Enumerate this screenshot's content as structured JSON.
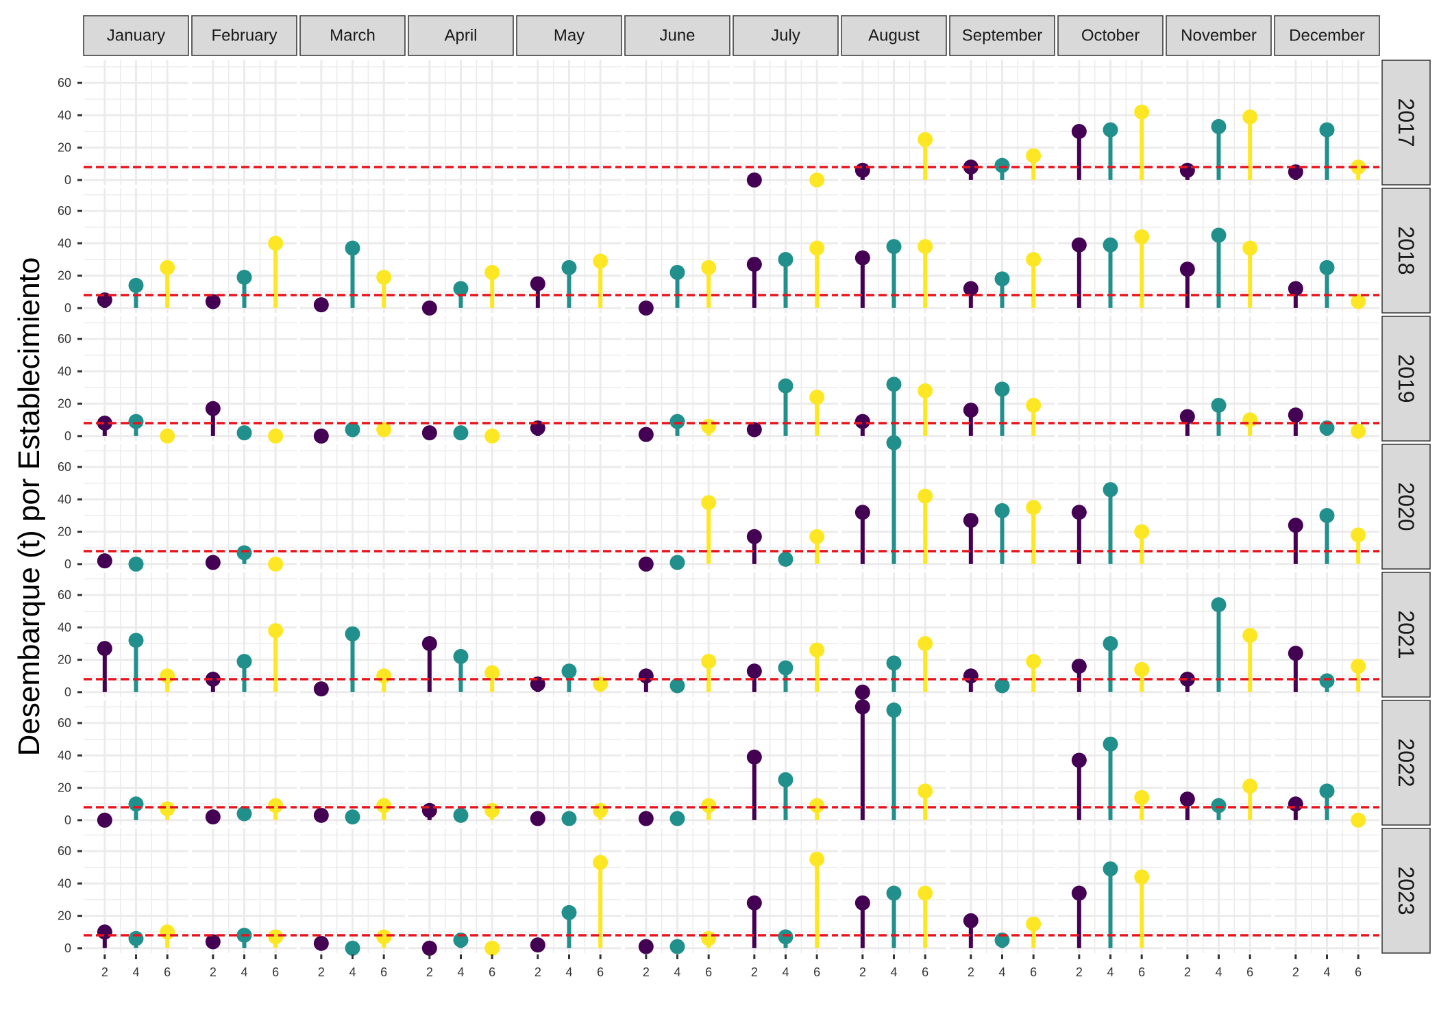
{
  "chart_data": {
    "type": "lollipop",
    "ylabel": "Desembarque (t) por Establecimiento",
    "xlabel": "",
    "months": [
      "January",
      "February",
      "March",
      "April",
      "May",
      "June",
      "July",
      "August",
      "September",
      "October",
      "November",
      "December"
    ],
    "years": [
      "2017",
      "2018",
      "2019",
      "2020",
      "2021",
      "2022",
      "2023"
    ],
    "x": [
      2,
      4,
      6
    ],
    "x_ticks": [
      "2",
      "4",
      "6"
    ],
    "ylim": [
      -3,
      74
    ],
    "y_ticks": [
      0,
      20,
      40,
      60
    ],
    "y_tick_labels": [
      "0",
      "20",
      "40",
      "60"
    ],
    "reference_line": {
      "y": 8,
      "style": "dashed",
      "color": "#e8141c"
    },
    "series_colors": [
      "#440154",
      "#21908c",
      "#fde725"
    ],
    "colors": {
      "panel_bg": "#ffffff",
      "grid": "#ebebeb",
      "strip_bg": "#d9d9d9",
      "strip_border": "#333333"
    },
    "values": {
      "2017": [
        [
          null,
          null,
          null
        ],
        [
          null,
          null,
          null
        ],
        [
          null,
          null,
          null
        ],
        [
          null,
          null,
          null
        ],
        [
          null,
          null,
          null
        ],
        [
          null,
          null,
          null
        ],
        [
          0,
          null,
          0
        ],
        [
          6,
          null,
          25
        ],
        [
          8,
          9,
          15
        ],
        [
          30,
          31,
          42
        ],
        [
          6,
          33,
          39
        ],
        [
          5,
          31,
          8
        ]
      ],
      "2018": [
        [
          5,
          14,
          25
        ],
        [
          4,
          19,
          40
        ],
        [
          2,
          37,
          19
        ],
        [
          0,
          12,
          22
        ],
        [
          15,
          25,
          29
        ],
        [
          0,
          22,
          25
        ],
        [
          27,
          30,
          37
        ],
        [
          31,
          38,
          38
        ],
        [
          12,
          18,
          30
        ],
        [
          39,
          39,
          44
        ],
        [
          24,
          45,
          37
        ],
        [
          12,
          25,
          4
        ]
      ],
      "2019": [
        [
          8,
          9,
          0
        ],
        [
          17,
          2,
          0
        ],
        [
          0,
          4,
          4
        ],
        [
          2,
          2,
          0
        ],
        [
          5,
          null,
          null
        ],
        [
          1,
          9,
          6
        ],
        [
          4,
          31,
          24
        ],
        [
          9,
          32,
          28
        ],
        [
          16,
          29,
          19
        ],
        [
          null,
          null,
          null
        ],
        [
          12,
          19,
          10
        ],
        [
          13,
          5,
          3
        ]
      ],
      "2020": [
        [
          2,
          0,
          null
        ],
        [
          1,
          7,
          0
        ],
        [
          null,
          null,
          null
        ],
        [
          null,
          null,
          null
        ],
        [
          null,
          null,
          null
        ],
        [
          0,
          1,
          38
        ],
        [
          17,
          3,
          17
        ],
        [
          32,
          75,
          42
        ],
        [
          27,
          33,
          35
        ],
        [
          32,
          46,
          20
        ],
        [
          null,
          null,
          null
        ],
        [
          24,
          30,
          18
        ]
      ],
      "2021": [
        [
          27,
          32,
          10
        ],
        [
          8,
          19,
          38
        ],
        [
          2,
          36,
          10
        ],
        [
          30,
          22,
          12
        ],
        [
          5,
          13,
          5
        ],
        [
          10,
          4,
          19
        ],
        [
          13,
          15,
          26
        ],
        [
          0,
          18,
          30
        ],
        [
          10,
          4,
          19
        ],
        [
          16,
          30,
          14
        ],
        [
          8,
          54,
          35
        ],
        [
          24,
          7,
          16
        ]
      ],
      "2022": [
        [
          0,
          10,
          7
        ],
        [
          2,
          4,
          9
        ],
        [
          3,
          2,
          9
        ],
        [
          6,
          3,
          6
        ],
        [
          1,
          1,
          6
        ],
        [
          1,
          1,
          9
        ],
        [
          39,
          25,
          9
        ],
        [
          70,
          68,
          18
        ],
        [
          null,
          null,
          null
        ],
        [
          37,
          47,
          14
        ],
        [
          13,
          9,
          21
        ],
        [
          10,
          18,
          0
        ]
      ],
      "2023": [
        [
          10,
          6,
          10
        ],
        [
          4,
          8,
          7
        ],
        [
          3,
          0,
          7
        ],
        [
          0,
          5,
          0
        ],
        [
          2,
          22,
          53
        ],
        [
          1,
          1,
          6
        ],
        [
          28,
          7,
          55
        ],
        [
          28,
          34,
          34
        ],
        [
          17,
          5,
          15
        ],
        [
          34,
          49,
          44
        ],
        [
          null,
          null,
          null
        ],
        [
          null,
          null,
          null
        ]
      ]
    }
  }
}
